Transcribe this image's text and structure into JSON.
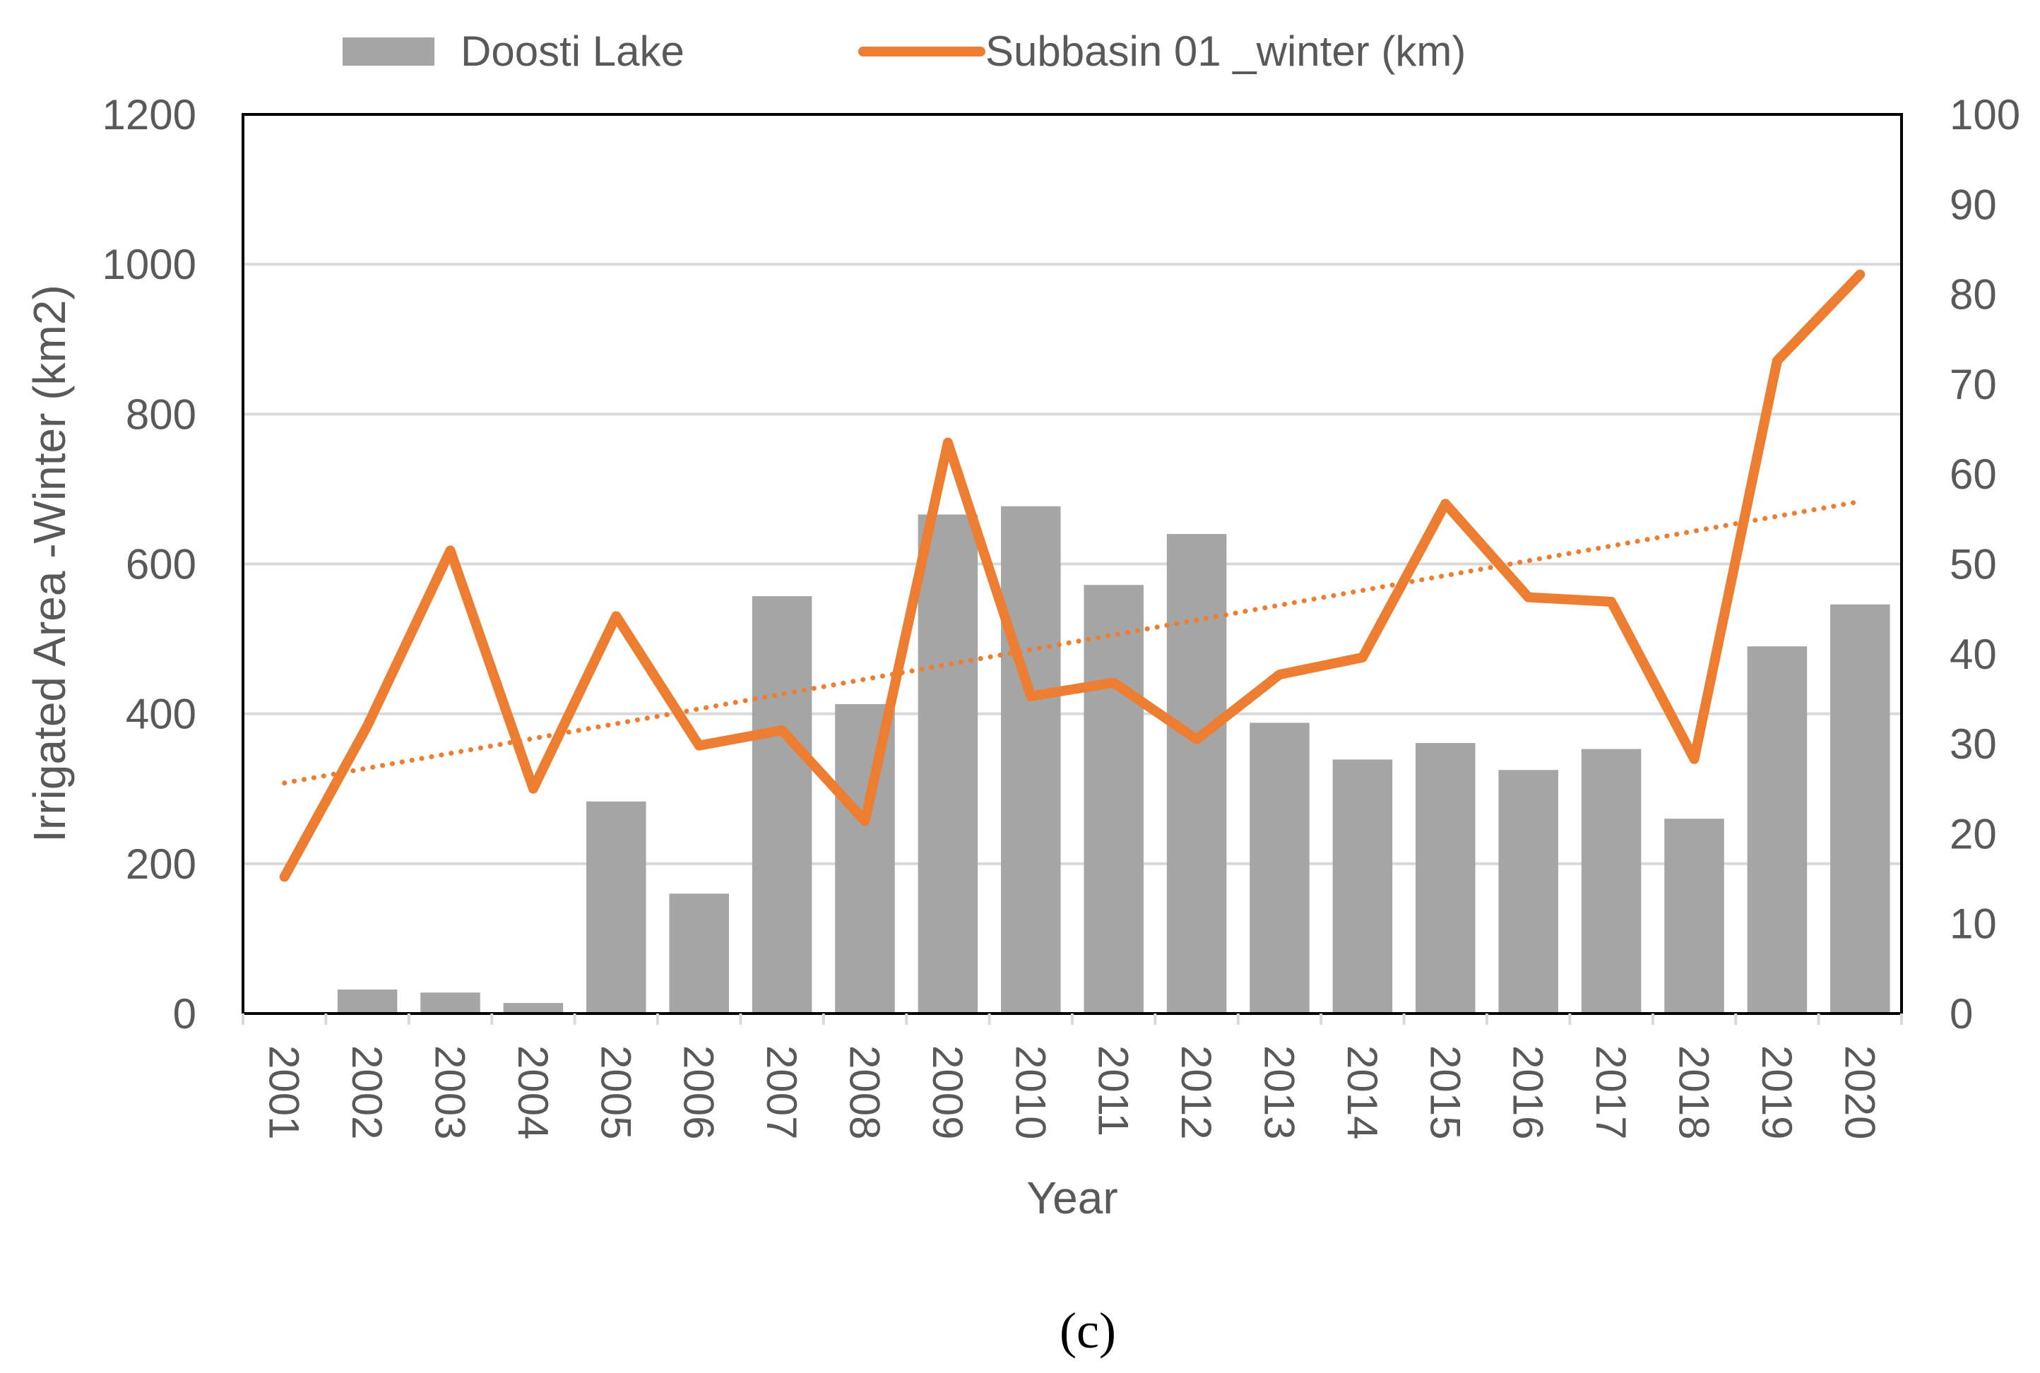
{
  "chart_data": {
    "type": "bar",
    "title": "",
    "xlabel": "Year",
    "ylabel": "Irrigated Area -Winter (km2)",
    "y2label": "",
    "ylim": [
      0,
      1200
    ],
    "y2lim": [
      0,
      100
    ],
    "yticks": [
      "0",
      "200",
      "400",
      "600",
      "800",
      "1000",
      "1200"
    ],
    "y2ticks": [
      "0",
      "10",
      "20",
      "30",
      "40",
      "50",
      "60",
      "70",
      "80",
      "90",
      "100"
    ],
    "grid": true,
    "legend_position": "top",
    "categories": [
      "2001",
      "2002",
      "2003",
      "2004",
      "2005",
      "2006",
      "2007",
      "2008",
      "2009",
      "2010",
      "2011",
      "2012",
      "2013",
      "2014",
      "2015",
      "2016",
      "2017",
      "2018",
      "2019",
      "2020"
    ],
    "series": [
      {
        "name": "Doosti Lake",
        "type": "bar",
        "axis": "left",
        "color": "#a5a5a5",
        "values": [
          0,
          32,
          28,
          14,
          283,
          160,
          557,
          413,
          666,
          677,
          572,
          640,
          388,
          339,
          361,
          325,
          353,
          260,
          490,
          546
        ]
      },
      {
        "name": "Subbasin 01 _winter  (km)",
        "type": "line",
        "axis": "right",
        "color": "#ed7d31",
        "values": [
          15.2,
          32.0,
          51.5,
          25.0,
          44.2,
          29.8,
          31.5,
          21.4,
          63.5,
          35.3,
          36.8,
          30.5,
          37.7,
          39.6,
          56.7,
          46.3,
          45.8,
          28.3,
          72.6,
          82.2
        ]
      }
    ],
    "trendline": {
      "series": "Subbasin 01 _winter  (km)",
      "type": "linear",
      "style": "dotted",
      "color": "#ed7d31"
    },
    "caption": "(c)"
  }
}
